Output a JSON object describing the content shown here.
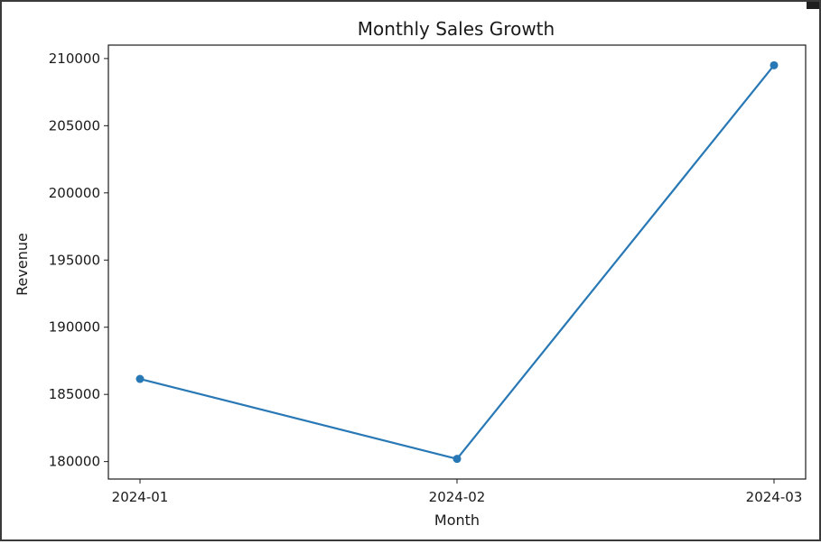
{
  "chart_data": {
    "type": "line",
    "title": "Monthly Sales Growth",
    "xlabel": "Month",
    "ylabel": "Revenue",
    "categories": [
      "2024-01",
      "2024-02",
      "2024-03"
    ],
    "series": [
      {
        "values": [
          186150,
          180200,
          209500
        ],
        "color": "#2878b5",
        "marker": "circle"
      }
    ],
    "ylim": [
      178700,
      211000
    ],
    "yticks": [
      180000,
      185000,
      190000,
      195000,
      200000,
      205000,
      210000
    ],
    "grid": false,
    "legend": "none"
  }
}
